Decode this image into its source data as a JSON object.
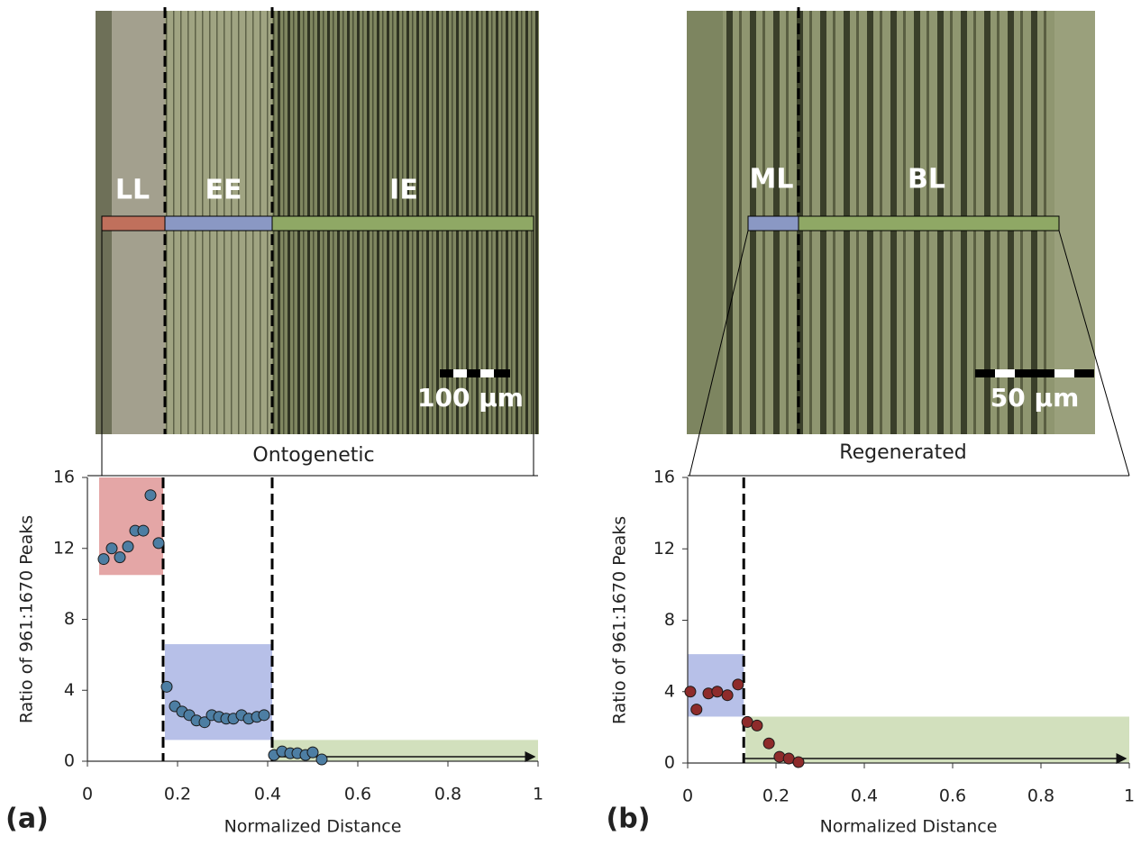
{
  "chart_data": [
    {
      "type": "scatter",
      "title": "Ontogenetic",
      "panel_label": "(a)",
      "x_label": "Normalized Distance",
      "y_label": "Ratio of 961:1670 Peaks",
      "x": [
        0.036,
        0.054,
        0.072,
        0.09,
        0.106,
        0.124,
        0.14,
        0.158,
        0.176,
        0.194,
        0.21,
        0.226,
        0.242,
        0.26,
        0.276,
        0.292,
        0.308,
        0.324,
        0.342,
        0.358,
        0.376,
        0.392,
        0.414,
        0.432,
        0.45,
        0.466,
        0.484,
        0.5,
        0.52
      ],
      "values": [
        11.4,
        12.0,
        11.5,
        12.1,
        13.0,
        13.0,
        15.0,
        12.3,
        4.2,
        3.1,
        2.8,
        2.6,
        2.3,
        2.2,
        2.6,
        2.5,
        2.4,
        2.4,
        2.6,
        2.4,
        2.5,
        2.6,
        0.35,
        0.55,
        0.45,
        0.45,
        0.35,
        0.5,
        0.1
      ],
      "color": "#4d7ea3",
      "xlim": [
        0,
        1
      ],
      "ylim": [
        0,
        16
      ],
      "xticks": [
        0,
        0.2,
        0.4,
        0.6,
        0.8,
        1
      ],
      "yticks": [
        0,
        4,
        8,
        12,
        16
      ],
      "regions": [
        {
          "x": [
            0.026,
            0.168
          ],
          "y": [
            10.5,
            16
          ],
          "color": "#e4a6a6"
        },
        {
          "x": [
            0.172,
            0.41
          ],
          "y": [
            1.2,
            6.6
          ],
          "color": "#b7c0e8"
        },
        {
          "x": [
            0.41,
            1
          ],
          "y": [
            0,
            1.2
          ],
          "color": "#d2e0bd"
        }
      ],
      "dividers": [
        0.168,
        0.41
      ],
      "zone_labels": [
        "LL",
        "EE",
        "IE"
      ],
      "scale_bar": "100 µm"
    },
    {
      "type": "scatter",
      "title": "Regenerated",
      "panel_label": "(b)",
      "x_label": "Normalized Distance",
      "y_label": "Ratio of 961:1670 Peaks",
      "x": [
        0.006,
        0.02,
        0.047,
        0.067,
        0.09,
        0.114,
        0.135,
        0.157,
        0.184,
        0.208,
        0.229,
        0.251
      ],
      "values": [
        4.0,
        3.0,
        3.9,
        4.0,
        3.8,
        4.4,
        2.3,
        2.1,
        1.1,
        0.35,
        0.25,
        0.05
      ],
      "color": "#8e2b2b",
      "xlim": [
        0,
        1
      ],
      "ylim": [
        0,
        16
      ],
      "xticks": [
        0,
        0.2,
        0.4,
        0.6,
        0.8,
        1
      ],
      "yticks": [
        0,
        4,
        8,
        12,
        16
      ],
      "regions": [
        {
          "x": [
            0,
            0.127
          ],
          "y": [
            2.6,
            6.1
          ],
          "color": "#b7c0e8"
        },
        {
          "x": [
            0.131,
            1
          ],
          "y": [
            0,
            2.6
          ],
          "color": "#d2e0bd"
        }
      ],
      "dividers": [
        0.127
      ],
      "zone_labels": [
        "ML",
        "BL"
      ],
      "scale_bar": "50 µm"
    }
  ]
}
